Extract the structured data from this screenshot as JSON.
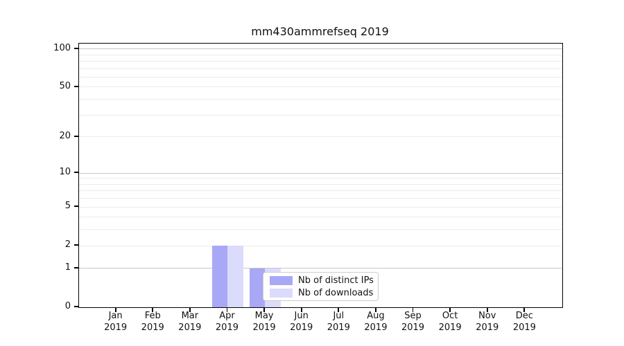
{
  "chart_data": {
    "type": "bar",
    "title": "mm430ammrefseq 2019",
    "categories": [
      "Jan",
      "Feb",
      "Mar",
      "Apr",
      "May",
      "Jun",
      "Jul",
      "Aug",
      "Sep",
      "Oct",
      "Nov",
      "Dec"
    ],
    "category_year": "2019",
    "series": [
      {
        "name": "Nb of distinct IPs",
        "color": "#a8a8f6",
        "values": [
          0,
          0,
          0,
          2,
          1,
          0,
          0,
          0,
          0,
          0,
          0,
          0
        ]
      },
      {
        "name": "Nb of downloads",
        "color": "#dbdbfc",
        "values": [
          0,
          0,
          0,
          2,
          1,
          0,
          0,
          0,
          0,
          0,
          0,
          0
        ]
      }
    ],
    "xlabel": "",
    "ylabel": "",
    "yscale": "log1p",
    "ylim": [
      0,
      110
    ],
    "y_major_ticks": [
      0,
      1,
      2,
      5,
      10,
      20,
      50,
      100
    ],
    "y_grid_values": [
      1,
      2,
      3,
      4,
      5,
      6,
      7,
      8,
      9,
      10,
      20,
      30,
      40,
      50,
      60,
      70,
      80,
      90,
      100
    ],
    "y_grid_emphasis": [
      1,
      10,
      100
    ],
    "grid": "on",
    "legend_position": "lower center-right inside plot"
  },
  "colors": {
    "grid_minor": "#ebebeb",
    "grid_major": "#c6c6c6",
    "spine": "#000000",
    "legend_border": "#cccccc",
    "legend_background": "#ffffff",
    "text": "#111111",
    "background": "#ffffff"
  }
}
